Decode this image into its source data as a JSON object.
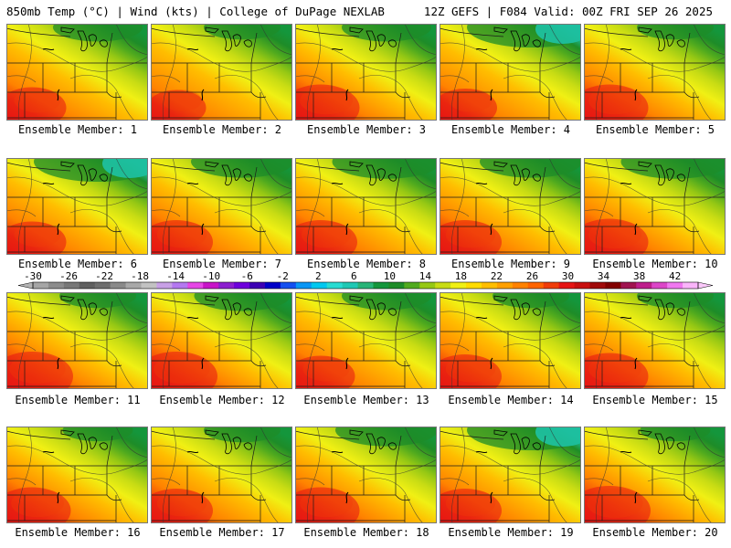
{
  "header": {
    "left": "850mb Temp (°C) | Wind (kts) | College of DuPage NEXLAB",
    "right": "12Z GEFS | F084 Valid: 00Z FRI SEP 26 2025"
  },
  "panels": [
    {
      "label": "Ensemble Member: 1",
      "cold": 0.7,
      "hot": 0.75
    },
    {
      "label": "Ensemble Member: 2",
      "cold": 0.6,
      "hot": 0.65
    },
    {
      "label": "Ensemble Member: 3",
      "cold": 0.7,
      "hot": 0.85
    },
    {
      "label": "Ensemble Member: 4",
      "cold": 1.0,
      "hot": 0.7
    },
    {
      "label": "Ensemble Member: 5",
      "cold": 0.6,
      "hot": 0.85
    },
    {
      "label": "Ensemble Member: 6",
      "cold": 1.0,
      "hot": 0.75
    },
    {
      "label": "Ensemble Member: 7",
      "cold": 0.8,
      "hot": 0.8
    },
    {
      "label": "Ensemble Member: 8",
      "cold": 0.85,
      "hot": 0.8
    },
    {
      "label": "Ensemble Member: 9",
      "cold": 0.8,
      "hot": 0.8
    },
    {
      "label": "Ensemble Member: 10",
      "cold": 0.85,
      "hot": 0.85
    },
    {
      "label": "Ensemble Member: 11",
      "cold": 0.6,
      "hot": 0.9
    },
    {
      "label": "Ensemble Member: 12",
      "cold": 0.75,
      "hot": 0.9
    },
    {
      "label": "Ensemble Member: 13",
      "cold": 0.7,
      "hot": 0.75
    },
    {
      "label": "Ensemble Member: 14",
      "cold": 0.6,
      "hot": 0.8
    },
    {
      "label": "Ensemble Member: 15",
      "cold": 0.6,
      "hot": 0.85
    },
    {
      "label": "Ensemble Member: 16",
      "cold": 0.55,
      "hot": 0.85
    },
    {
      "label": "Ensemble Member: 17",
      "cold": 0.6,
      "hot": 0.8
    },
    {
      "label": "Ensemble Member: 18",
      "cold": 0.8,
      "hot": 0.85
    },
    {
      "label": "Ensemble Member: 19",
      "cold": 1.0,
      "hot": 0.8
    },
    {
      "label": "Ensemble Member: 20",
      "cold": 0.55,
      "hot": 0.9
    }
  ],
  "colorbar": {
    "labels": [
      "-30",
      "-26",
      "-22",
      "-18",
      "-14",
      "-10",
      "-6",
      "-2",
      "2",
      "6",
      "10",
      "14",
      "18",
      "22",
      "26",
      "30",
      "34",
      "38",
      "42"
    ],
    "colors": [
      "#a5a5a5",
      "#8c8c8c",
      "#787878",
      "#5f5f5f",
      "#6e6e6e",
      "#8a8a8a",
      "#a8a8a8",
      "#c2c2c2",
      "#c8a0e6",
      "#b478f0",
      "#e646e6",
      "#c814c8",
      "#8c1ecf",
      "#6e00dc",
      "#3c00b4",
      "#0000c8",
      "#1450f0",
      "#0a96f5",
      "#00c8f0",
      "#28dcd2",
      "#1ec8b4",
      "#28b478",
      "#14963c",
      "#1e8c28",
      "#50aa1e",
      "#96c814",
      "#c8dc14",
      "#f0f014",
      "#ffdc00",
      "#ffbe00",
      "#ffa000",
      "#ff8200",
      "#ff6400",
      "#f03c0a",
      "#e61414",
      "#c80f0f",
      "#a00a0a",
      "#820000",
      "#a01450",
      "#be1e8c",
      "#dc46c8",
      "#f078f0",
      "#fab4fa"
    ]
  }
}
